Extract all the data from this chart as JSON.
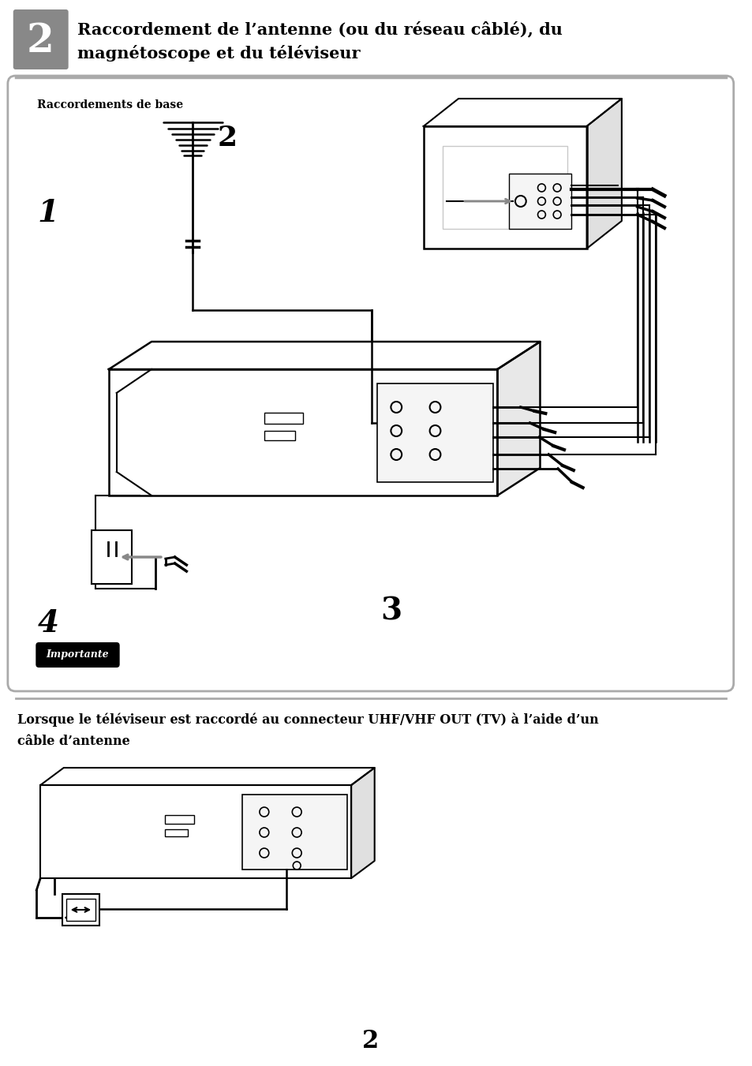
{
  "title_number": "2",
  "title_text_line1": "Raccordement de l’antenne (ou du réseau câblé), du",
  "title_text_line2": "magnétoscope et du téléviseur",
  "section_label": "Raccordements de base",
  "num1": "1",
  "num2": "2",
  "num3": "3",
  "num4": "4",
  "importante_label": "Importante",
  "bottom_text_line1": "Lorsque le téléviseur est raccordé au connecteur UHF/VHF OUT (TV) à l’aide d’un",
  "bottom_text_line2": "câble d’antenne",
  "page_number": "2",
  "bg_color": "#ffffff",
  "header_gray": "#888888",
  "black": "#000000",
  "med_gray": "#999999",
  "light_gray": "#c8c8c8",
  "border_gray": "#aaaaaa",
  "cable_gray": "#888888"
}
